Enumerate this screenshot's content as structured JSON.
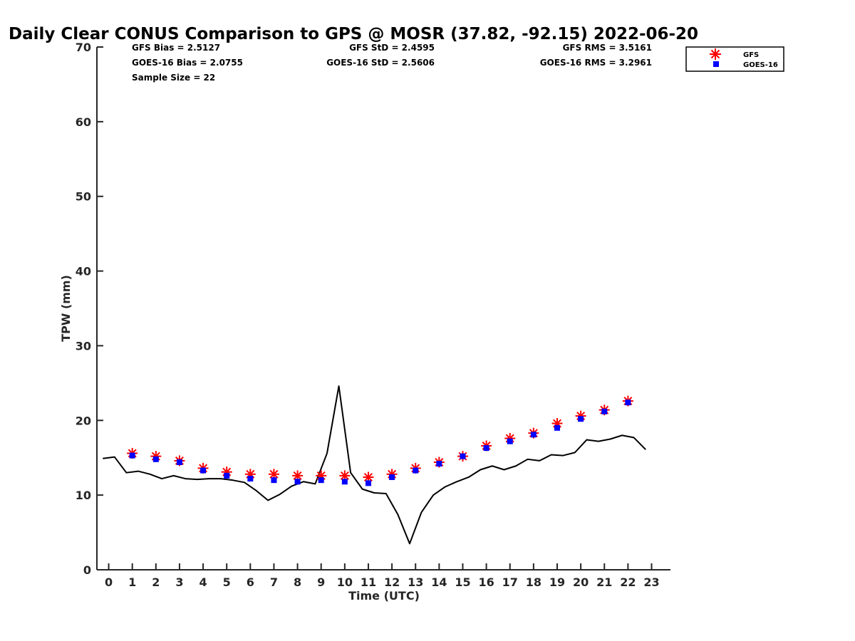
{
  "chart_data": {
    "type": "line",
    "title": "Daily Clear CONUS Comparison to GPS @ MOSR (37.82, -92.15) 2022-06-20",
    "xlabel": "Time (UTC)",
    "ylabel": "TPW (mm)",
    "xlim": [
      -0.5,
      23.8
    ],
    "ylim": [
      0,
      70
    ],
    "xticks": [
      0,
      1,
      2,
      3,
      4,
      5,
      6,
      7,
      8,
      9,
      10,
      11,
      12,
      13,
      14,
      15,
      16,
      17,
      18,
      19,
      20,
      21,
      22,
      23
    ],
    "yticks": [
      0,
      10,
      20,
      30,
      40,
      50,
      60,
      70
    ],
    "stats": {
      "gfs_bias": "GFS Bias = 2.5127",
      "goes_bias": "GOES-16 Bias = 2.0755",
      "sample_size": "Sample Size = 22",
      "gfs_std": "GFS StD = 2.4595",
      "goes_std": "GOES-16 StD = 2.5606",
      "gfs_rms": "GFS RMS = 3.5161",
      "goes_rms": "GOES-16 RMS = 3.2961"
    },
    "legend": {
      "position": "top-right",
      "entries": [
        "GFS",
        "GOES-16"
      ]
    },
    "series": [
      {
        "name": "GPS",
        "style": "line",
        "color": "#000000",
        "x": [
          -0.25,
          0.25,
          0.75,
          1.25,
          1.75,
          2.25,
          2.75,
          3.25,
          3.75,
          4.25,
          4.75,
          5.25,
          5.75,
          6.25,
          6.75,
          7.25,
          7.75,
          8.25,
          8.75,
          9.25,
          9.75,
          10.25,
          10.75,
          11.25,
          11.75,
          12.25,
          12.75,
          13.25,
          13.75,
          14.25,
          14.75,
          15.25,
          15.75,
          16.25,
          16.75,
          17.25,
          17.75,
          18.25,
          18.75,
          19.25,
          19.75,
          20.25,
          20.75,
          21.25,
          21.75,
          22.25,
          22.75
        ],
        "y": [
          14.9,
          15.1,
          13.0,
          13.2,
          12.8,
          12.2,
          12.6,
          12.2,
          12.1,
          12.2,
          12.2,
          12.0,
          11.7,
          10.6,
          9.3,
          10.1,
          11.2,
          11.8,
          11.5,
          15.6,
          24.6,
          13.0,
          10.8,
          10.3,
          10.2,
          7.4,
          3.5,
          7.7,
          10.0,
          11.1,
          11.8,
          12.4,
          13.4,
          13.9,
          13.4,
          13.9,
          14.8,
          14.6,
          15.4,
          15.3,
          15.7,
          17.4,
          17.2,
          17.5,
          18.0,
          17.7,
          16.1
        ]
      },
      {
        "name": "GFS",
        "style": "marker-asterisk",
        "color": "#ff0000",
        "x": [
          1,
          2,
          3,
          4,
          5,
          6,
          7,
          8,
          9,
          10,
          11,
          12,
          13,
          14,
          15,
          16,
          17,
          18,
          19,
          20,
          21,
          22
        ],
        "y": [
          15.6,
          15.2,
          14.6,
          13.6,
          13.1,
          12.8,
          12.8,
          12.6,
          12.6,
          12.6,
          12.4,
          12.8,
          13.6,
          14.4,
          15.2,
          16.6,
          17.6,
          18.3,
          19.6,
          20.6,
          21.4,
          22.6
        ]
      },
      {
        "name": "GOES-16",
        "style": "marker-square",
        "color": "#0000ff",
        "x": [
          1,
          2,
          3,
          4,
          5,
          6,
          7,
          8,
          9,
          10,
          11,
          12,
          13,
          14,
          15,
          16,
          17,
          18,
          19,
          20,
          21,
          22
        ],
        "y": [
          15.3,
          14.8,
          14.4,
          13.3,
          12.6,
          12.2,
          12.0,
          11.8,
          12.0,
          11.8,
          11.6,
          12.4,
          13.3,
          14.2,
          15.2,
          16.3,
          17.2,
          18.1,
          19.0,
          20.2,
          21.2,
          22.4
        ]
      }
    ]
  }
}
